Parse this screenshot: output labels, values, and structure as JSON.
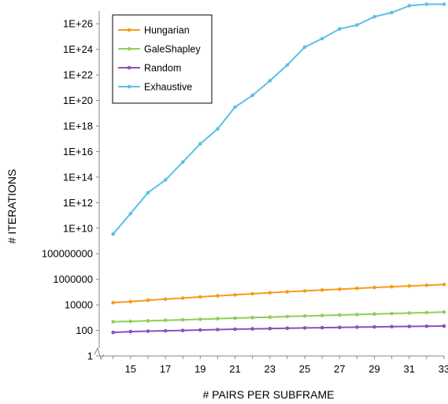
{
  "chart_data": {
    "type": "line",
    "xlabel": "# PAIRS PER SUBFRAME",
    "ylabel": "# ITERATIONS",
    "log_scale_y": true,
    "x": [
      14,
      15,
      16,
      17,
      18,
      19,
      20,
      21,
      22,
      23,
      24,
      25,
      26,
      27,
      28,
      29,
      30,
      31,
      32,
      33
    ],
    "xlim": [
      13.2,
      33
    ],
    "ylim": [
      1,
      1e+27
    ],
    "x_ticks": [
      15,
      17,
      19,
      21,
      23,
      25,
      27,
      29,
      31,
      33
    ],
    "y_ticks": [
      {
        "v": 1,
        "label": "1"
      },
      {
        "v": 100,
        "label": "100"
      },
      {
        "v": 10000,
        "label": "10000"
      },
      {
        "v": 1000000,
        "label": "1000000"
      },
      {
        "v": 100000000,
        "label": "100000000"
      },
      {
        "v": 10000000000.0,
        "label": "1E+10"
      },
      {
        "v": 1000000000000.0,
        "label": "1E+12"
      },
      {
        "v": 100000000000000.0,
        "label": "1E+14"
      },
      {
        "v": 1e+16,
        "label": "1E+16"
      },
      {
        "v": 1e+18,
        "label": "1E+18"
      },
      {
        "v": 1e+20,
        "label": "1E+20"
      },
      {
        "v": 1e+22,
        "label": "1E+22"
      },
      {
        "v": 1e+24,
        "label": "1E+24"
      },
      {
        "v": 1e+26,
        "label": "1E+26"
      }
    ],
    "grid": false,
    "axis_break": true,
    "legend_position": "top-left",
    "series": [
      {
        "name": "Hungarian",
        "color": "#f59c1a",
        "values": [
          15000,
          18000,
          23000,
          28000,
          34000,
          42000,
          51000,
          61000,
          74000,
          88000,
          105000,
          123000,
          146000,
          170000,
          197000,
          227000,
          262000,
          300000,
          342000,
          390000
        ]
      },
      {
        "name": "GaleShapley",
        "color": "#8fcf57",
        "values": [
          480,
          510,
          560,
          620,
          680,
          750,
          830,
          910,
          1000,
          1100,
          1220,
          1340,
          1470,
          1610,
          1760,
          1920,
          2100,
          2290,
          2490,
          2700
        ]
      },
      {
        "name": "Random",
        "color": "#8b4fbd",
        "values": [
          70,
          80,
          88,
          94,
          100,
          108,
          116,
          124,
          132,
          140,
          148,
          156,
          164,
          172,
          180,
          188,
          196,
          204,
          212,
          220
        ]
      },
      {
        "name": "Exhaustive",
        "color": "#5bc0e8",
        "values": [
          3500000000.0,
          140000000000.0,
          6000000000000.0,
          60000000000000.0,
          1500000000000000.0,
          4e+16,
          6e+17,
          3e+19,
          2.5e+20,
          3.5e+21,
          6e+22,
          1.5e+24,
          7e+24,
          4e+25,
          8e+25,
          3.6e+26,
          7.5e+26,
          2.6e+27,
          3.4e+27,
          3.4e+27
        ]
      }
    ]
  }
}
